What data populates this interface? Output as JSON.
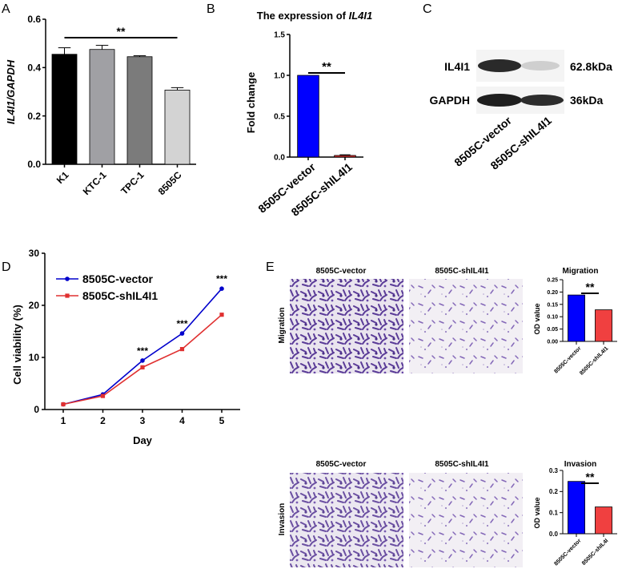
{
  "panels": {
    "A": {
      "letter": "A",
      "chart_data": {
        "type": "bar",
        "categories": [
          "K1",
          "KTC-1",
          "TPC-1",
          "8505C"
        ],
        "values": [
          0.455,
          0.475,
          0.445,
          0.307
        ],
        "errors": [
          0.027,
          0.017,
          0.004,
          0.01
        ],
        "colors": [
          "#000000",
          "#a0a0a4",
          "#7b7b7b",
          "#d3d3d3"
        ],
        "ylabel": "IL4I1/GAPDH",
        "ylim": [
          0,
          0.6
        ],
        "yticks": [
          "0.0",
          "0.2",
          "0.4",
          "0.6"
        ],
        "significance": "**"
      }
    },
    "B": {
      "letter": "B",
      "title_prefix": "The expression of ",
      "title_gene": "IL4I1",
      "chart_data": {
        "type": "bar",
        "categories": [
          "8505C-vector",
          "8505C-shIL4I1"
        ],
        "values": [
          1.0,
          0.02
        ],
        "errors": [
          0.0,
          0.008
        ],
        "colors": [
          "#0000ff",
          "#e03030"
        ],
        "ylabel": "Fold change",
        "ylim": [
          0,
          1.5
        ],
        "yticks": [
          "0.0",
          "0.5",
          "1.0",
          "1.5"
        ],
        "significance": "**"
      }
    },
    "C": {
      "letter": "C",
      "bands": [
        {
          "name": "IL4I1",
          "size": "62.8kDa"
        },
        {
          "name": "GAPDH",
          "size": "36kDa"
        }
      ],
      "lanes": [
        "8505C-vector",
        "8505C-shIL4I1"
      ]
    },
    "D": {
      "letter": "D",
      "chart_data": {
        "type": "line",
        "x": [
          1,
          2,
          3,
          4,
          5
        ],
        "series": [
          {
            "name": "8505C-vector",
            "values": [
              1.0,
              2.9,
              9.4,
              14.6,
              23.2
            ],
            "color": "#0000cc"
          },
          {
            "name": "8505C-shIL4I1",
            "values": [
              1.0,
              2.6,
              8.1,
              11.6,
              18.2
            ],
            "color": "#e03030"
          }
        ],
        "ylabel": "Cell viability (%)",
        "xlabel": "Day",
        "ylim": [
          0,
          30
        ],
        "yticks": [
          "0",
          "10",
          "20",
          "30"
        ],
        "xticks": [
          "1",
          "2",
          "3",
          "4",
          "5"
        ],
        "annotations": [
          "***",
          "***",
          "***"
        ]
      }
    },
    "E": {
      "letter": "E",
      "image_headers": [
        "8505C-vector",
        "8505C-shIL4I1"
      ],
      "row_labels": [
        "Migration",
        "Invasion"
      ],
      "migration_chart": {
        "type": "bar",
        "title": "Migration",
        "categories": [
          "8505C-vector",
          "8505C-shIL4I1"
        ],
        "values": [
          0.188,
          0.128
        ],
        "colors": [
          "#0000ff",
          "#f04040"
        ],
        "ylabel": "OD value",
        "ylim": [
          0,
          0.25
        ],
        "yticks": [
          "0.00",
          "0.05",
          "0.10",
          "0.15",
          "0.20",
          "0.25"
        ],
        "significance": "**"
      },
      "invasion_chart": {
        "type": "bar",
        "title": "Invasion",
        "categories": [
          "8505C-vector",
          "8505C-shIL4I"
        ],
        "values": [
          0.248,
          0.127
        ],
        "colors": [
          "#0000ff",
          "#f04040"
        ],
        "ylabel": "OD value",
        "ylim": [
          0,
          0.3
        ],
        "yticks": [
          "0.0",
          "0.1",
          "0.2",
          "0.3"
        ],
        "significance": "**"
      }
    }
  }
}
